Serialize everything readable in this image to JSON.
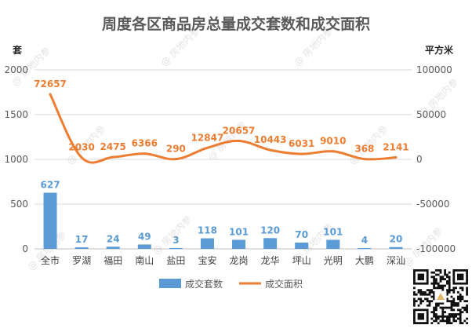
{
  "title": "周度各区商品房总量成交套数和成交面积",
  "watermark": "房地内参",
  "chart_data": {
    "type": "bar",
    "categories": [
      "全市",
      "罗湖",
      "福田",
      "南山",
      "盐田",
      "宝安",
      "龙岗",
      "龙华",
      "坪山",
      "光明",
      "大鹏",
      "深汕"
    ],
    "y_left": {
      "unit": "套",
      "ylim": [
        0,
        2000
      ],
      "ticks": [
        "0",
        "500",
        "1000",
        "1500",
        "2000"
      ]
    },
    "y_right": {
      "unit": "平方米",
      "ylim": [
        -100000,
        100000
      ],
      "ticks": [
        "-100000",
        "-50000",
        "0",
        "50000",
        "100000"
      ]
    },
    "series": [
      {
        "name": "成交套数",
        "type": "bar",
        "axis": "left",
        "color": "#5b9bd5",
        "values": [
          627,
          17,
          24,
          49,
          3,
          118,
          101,
          120,
          70,
          101,
          4,
          20
        ],
        "labels": [
          "627",
          "17",
          "24",
          "49",
          "3",
          "118",
          "101",
          "120",
          "70",
          "101",
          "4",
          "20"
        ]
      },
      {
        "name": "成交面积",
        "type": "line",
        "axis": "right",
        "color": "#ed7d31",
        "values": [
          72657,
          2030,
          2475,
          6366,
          290,
          12847,
          20657,
          10443,
          6031,
          9010,
          368,
          2141
        ],
        "labels": [
          "72657",
          "2030",
          "2475",
          "6366",
          "290",
          "12847",
          "20657",
          "10443",
          "6031",
          "9010",
          "368",
          "2141"
        ]
      }
    ],
    "legend": "bottom",
    "grid": true
  }
}
